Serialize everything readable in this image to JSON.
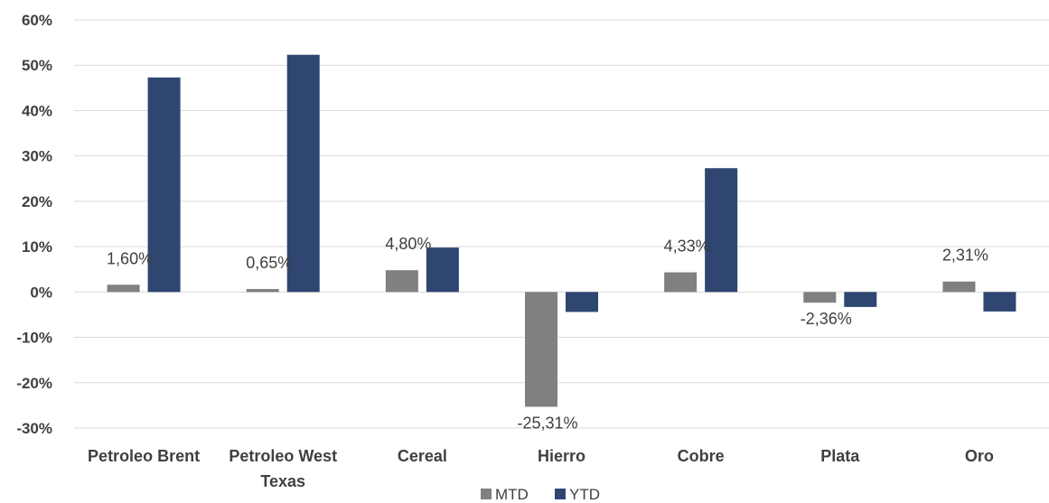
{
  "chart_data": {
    "type": "bar",
    "categories": [
      [
        "Petroleo Brent"
      ],
      [
        "Petroleo West",
        "Texas"
      ],
      [
        "Cereal"
      ],
      [
        "Hierro"
      ],
      [
        "Cobre"
      ],
      [
        "Plata"
      ],
      [
        "Oro"
      ]
    ],
    "series": [
      {
        "name": "MTD",
        "color": "#808080",
        "values": [
          1.6,
          0.65,
          4.8,
          -25.31,
          4.33,
          -2.36,
          2.31
        ],
        "labels": [
          "1,60%",
          "0,65%",
          "4,80%",
          "-25,31%",
          "4,33%",
          "-2,36%",
          "2,31%"
        ]
      },
      {
        "name": "YTD",
        "color": "#2E4670",
        "values": [
          47.3,
          52.3,
          9.8,
          -4.4,
          27.3,
          -3.3,
          -4.3
        ]
      }
    ],
    "ylim": [
      -30,
      60
    ],
    "yticks": [
      60,
      50,
      40,
      30,
      20,
      10,
      0,
      -10,
      -20,
      -30
    ],
    "ytick_labels": [
      "60%",
      "50%",
      "40%",
      "30%",
      "20%",
      "10%",
      "0%",
      "-10%",
      "-20%",
      "-30%"
    ],
    "grid": true,
    "legend_position": "bottom",
    "title": "",
    "xlabel": "",
    "ylabel": ""
  }
}
